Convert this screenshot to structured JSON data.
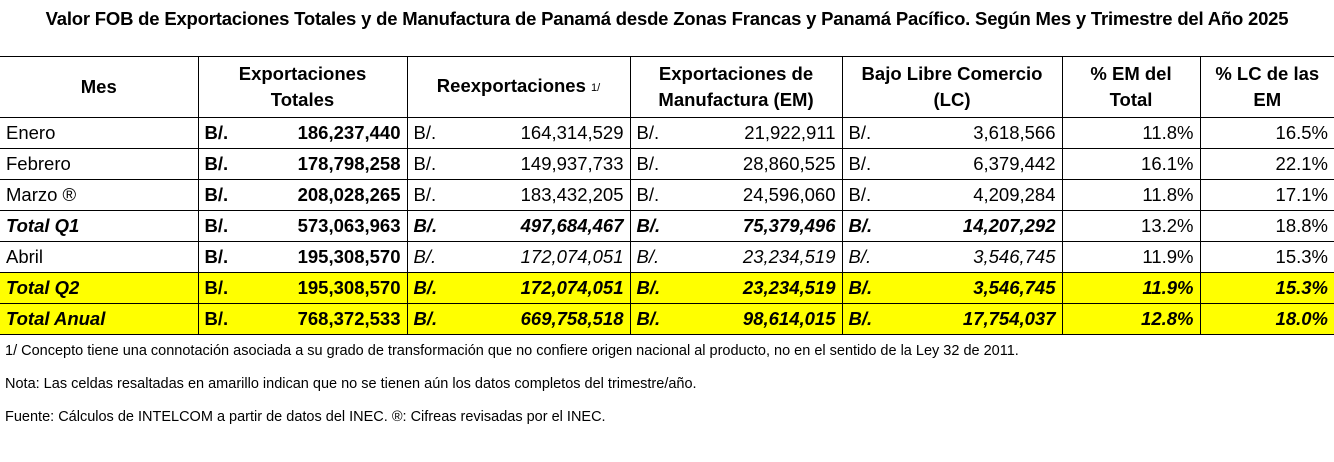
{
  "title": "Valor FOB de Exportaciones Totales y de Manufactura de Panamá desde Zonas Francas y Panamá Pacífico. Según Mes y Trimestre del Año 2025",
  "table": {
    "header": [
      "Mes",
      "Exportaciones Totales",
      "Reexportaciones",
      "Exportaciones de Manufactura (EM)",
      "Bajo Libre Comercio (LC)",
      "% EM del Total",
      "% LC de las EM"
    ],
    "header_note": "1/",
    "rows": [
      [
        "Enero",
        "B/.",
        "186,237,440",
        "B/.",
        "164,314,529",
        "B/.",
        "21,922,911",
        "B/.",
        "3,618,566",
        "11.8%",
        "16.5%"
      ],
      [
        "Febrero",
        "B/.",
        "178,798,258",
        "B/.",
        "149,937,733",
        "B/.",
        "28,860,525",
        "B/.",
        "6,379,442",
        "16.1%",
        "22.1%"
      ],
      [
        "Marzo ®",
        "B/.",
        "208,028,265",
        "B/.",
        "183,432,205",
        "B/.",
        "24,596,060",
        "B/.",
        "4,209,284",
        "11.8%",
        "17.1%"
      ],
      [
        "Total Q1",
        "B/.",
        "573,063,963",
        "B/.",
        "497,684,467",
        "B/.",
        "75,379,496",
        "B/.",
        "14,207,292",
        "13.2%",
        "18.8%"
      ],
      [
        "Abril",
        "B/.",
        "195,308,570",
        "B/.",
        "172,074,051",
        "B/.",
        "23,234,519",
        "B/.",
        "3,546,745",
        "11.9%",
        "15.3%"
      ],
      [
        "Total Q2",
        "B/.",
        "195,308,570",
        "B/.",
        "172,074,051",
        "B/.",
        "23,234,519",
        "B/.",
        "3,546,745",
        "11.9%",
        "15.3%"
      ],
      [
        "Total Anual",
        "B/.",
        "768,372,533",
        "B/.",
        "669,758,518",
        "B/.",
        "98,614,015",
        "B/.",
        "17,754,037",
        "12.8%",
        "18.0%"
      ]
    ]
  },
  "notes": [
    "1/ Concepto tiene una connotación asociada a su grado de transformación que no confiere origen nacional al producto, no en el sentido de la Ley 32 de 2011.",
    "Nota: Las celdas resaltadas en amarillo indican que no se tienen aún los datos completos del trimestre/año.",
    "Fuente: Cálculos de INTELCOM a partir de datos del INEC. ®: Cifreas revisadas por el INEC."
  ]
}
